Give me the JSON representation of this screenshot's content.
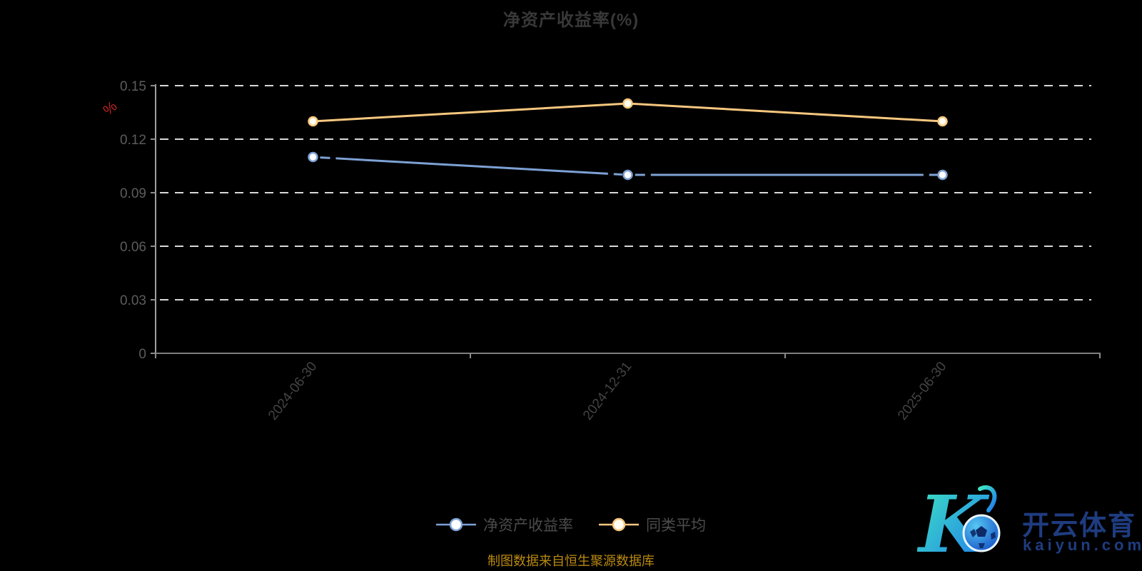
{
  "title": {
    "text": "净资产收益率(%)"
  },
  "y_axis_name": "%",
  "legend": [
    {
      "label": "净资产收益率"
    },
    {
      "label": "同类平均"
    }
  ],
  "caption": "制图数据来自恒生聚源数据库",
  "watermark": {
    "brand": "开云体育",
    "domain": "kaiyun.com"
  },
  "colors": {
    "background": "#000000",
    "title_text": "#383838",
    "axis_label": "#5c5c5c",
    "x_axis_label": "#434343",
    "grid_line": "#d8d8d8",
    "y_axis_line": "#a0a0a0",
    "x_axis_line": "#7e7e7e",
    "tick": "#8c8c8c",
    "y_name_red": "#bf2222",
    "caption_gold": "#ba8a10",
    "watermark_navy": "#1f3c80",
    "series_blue": "#7da1d4",
    "series_orange": "#f6c77e"
  },
  "chart_data": {
    "type": "line",
    "title": "净资产收益率(%)",
    "categories": [
      "2024-06-30",
      "2024-12-31",
      "2025-06-30"
    ],
    "series": [
      {
        "name": "净资产收益率",
        "values": [
          0.11,
          0.1,
          0.1
        ],
        "color": "#7da1d4",
        "symbol_fill": "#ffffff",
        "line_break_at_points": true
      },
      {
        "name": "同类平均",
        "values": [
          0.13,
          0.14,
          0.13
        ],
        "color": "#f6c77e",
        "symbol_fill": "#fffdf2",
        "line_break_at_points": false
      }
    ],
    "xlabel": "",
    "ylabel": "%",
    "ylim": [
      0,
      0.15
    ],
    "yticks": [
      0,
      0.03,
      0.06,
      0.09,
      0.12,
      0.15
    ],
    "ytick_labels": [
      "0",
      "0.03",
      "0.06",
      "0.09",
      "0.12",
      "0.15"
    ],
    "grid": "horizontal-dashed",
    "legend_position": "bottom",
    "x_label_rotation_deg": -52
  }
}
